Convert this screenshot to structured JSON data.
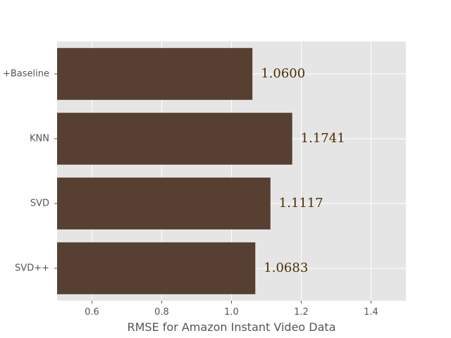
{
  "chart_data": {
    "type": "bar",
    "orientation": "horizontal",
    "categories": [
      "+Baseline",
      "KNN",
      "SVD",
      "SVD++"
    ],
    "values": [
      1.06,
      1.1741,
      1.1117,
      1.0683
    ],
    "value_labels": [
      "1.0600",
      "1.1741",
      "1.1117",
      "1.0683"
    ],
    "xlabel": "RMSE for Amazon Instant Video Data",
    "ylabel": "",
    "title": "",
    "xlim": [
      0.5,
      1.5
    ],
    "xticks": [
      0.6,
      0.8,
      1.0,
      1.2,
      1.4
    ],
    "xtick_labels": [
      "0.6",
      "0.8",
      "1.0",
      "1.2",
      "1.4"
    ],
    "grid": true,
    "style": "ggplot",
    "colors": {
      "bar": "#574031",
      "plot_background": "#e5e5e5",
      "grid": "#ffffff",
      "tick_text": "#555555",
      "data_label": "#4a2e00"
    }
  }
}
